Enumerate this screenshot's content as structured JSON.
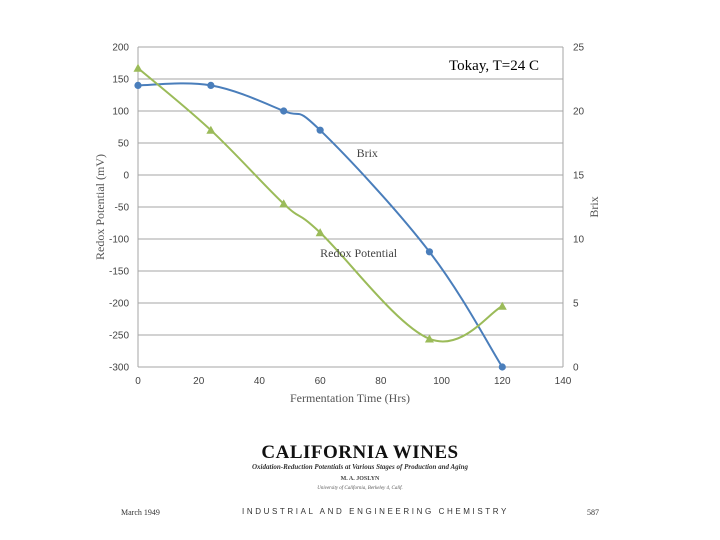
{
  "chart_data": {
    "type": "line",
    "title": "Tokay, T=24 C",
    "xlabel": "Fermentation Time (Hrs)",
    "ylabel": "Redox Potential (mV)",
    "y2label": "Brix",
    "xlim": [
      0,
      140
    ],
    "ylim": [
      -300,
      200
    ],
    "y2lim": [
      0,
      25
    ],
    "xticks": [
      "0",
      "20",
      "40",
      "60",
      "80",
      "100",
      "120",
      "140"
    ],
    "yticks": [
      "200",
      "150",
      "100",
      "50",
      "0",
      "-50",
      "-100",
      "-150",
      "-200",
      "-250",
      "-300"
    ],
    "y2ticks": [
      "25",
      "20",
      "15",
      "10",
      "5",
      "0"
    ],
    "grid": true,
    "series": [
      {
        "name": "Brix",
        "axis": "right",
        "color": "#4a7ebb",
        "marker": "circle",
        "x": [
          0,
          24,
          48,
          60,
          96,
          120
        ],
        "values": [
          22,
          22,
          20,
          18.5,
          9,
          0
        ],
        "label_at": [
          72,
          16.4
        ]
      },
      {
        "name": "Redox Potential",
        "axis": "left",
        "color": "#9bbb59",
        "marker": "triangle",
        "x": [
          0,
          24,
          48,
          60,
          96,
          120
        ],
        "values": [
          167,
          70,
          -45,
          -90,
          -256,
          -205
        ],
        "label_at": [
          60,
          -128
        ]
      }
    ]
  },
  "paper": {
    "title": "CALIFORNIA WINES",
    "subtitle": "Oxidation-Reduction Potentials at Various Stages of Production and Aging",
    "author": "M. A. JOSLYN",
    "affiliation": "University of California, Berkeley 4, Calif.",
    "date": "March 1949",
    "journal": "INDUSTRIAL AND ENGINEERING CHEMISTRY",
    "page": "587"
  }
}
